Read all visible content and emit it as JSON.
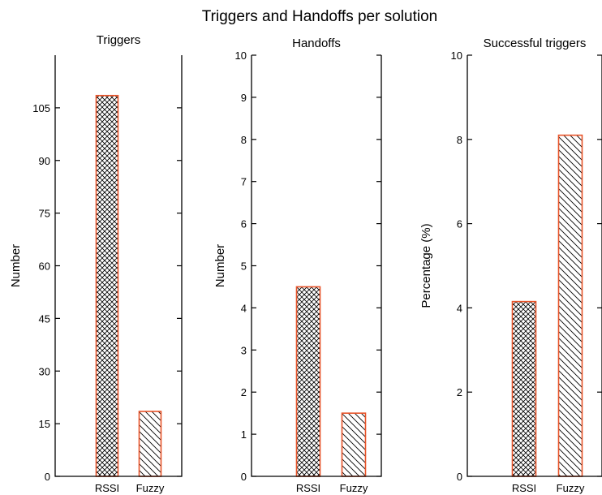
{
  "figure_title": "Triggers and Handoffs per solution",
  "colors": {
    "bar_edge": "#e8542a",
    "axis": "#000000",
    "hatch": "#000000"
  },
  "chart_data": [
    {
      "type": "bar",
      "title": "Triggers",
      "ylabel": "Number",
      "categories": [
        "RSSI",
        "Fuzzy"
      ],
      "values": [
        108.5,
        18.5
      ],
      "hatches": [
        "crosshatch",
        "diagonal"
      ],
      "ylim": [
        0,
        120
      ],
      "yticks": [
        0,
        15,
        30,
        45,
        60,
        75,
        90,
        105
      ],
      "grid": false
    },
    {
      "type": "bar",
      "title": "Handoffs",
      "ylabel": "Number",
      "categories": [
        "RSSI",
        "Fuzzy"
      ],
      "values": [
        4.5,
        1.5
      ],
      "hatches": [
        "crosshatch",
        "diagonal"
      ],
      "ylim": [
        0,
        10
      ],
      "yticks": [
        0,
        1,
        2,
        3,
        4,
        5,
        6,
        7,
        8,
        9,
        10
      ],
      "grid": false
    },
    {
      "type": "bar",
      "title": "Successful triggers",
      "ylabel": "Percentage (%)",
      "categories": [
        "RSSI",
        "Fuzzy"
      ],
      "values": [
        4.15,
        8.1
      ],
      "hatches": [
        "crosshatch",
        "diagonal"
      ],
      "ylim": [
        0,
        10
      ],
      "yticks": [
        0,
        2,
        4,
        6,
        8,
        10
      ],
      "grid": false
    }
  ]
}
